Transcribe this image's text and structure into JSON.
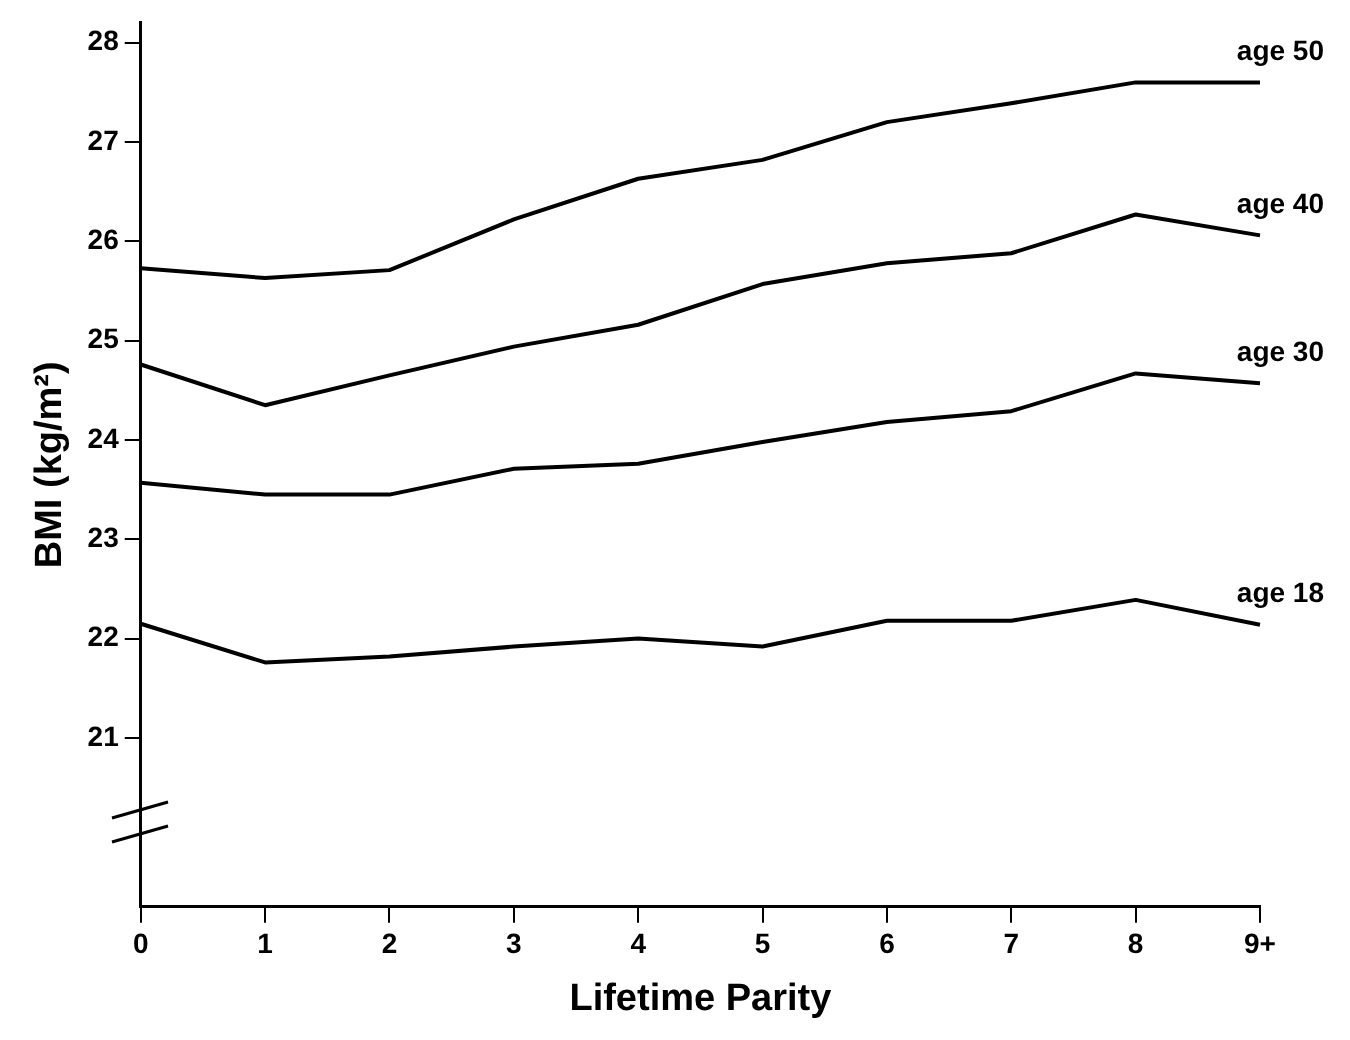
{
  "chart_data": {
    "type": "line",
    "xlabel": "Lifetime Parity",
    "ylabel": "BMI (kg/m²)",
    "categories": [
      "0",
      "1",
      "2",
      "3",
      "4",
      "5",
      "6",
      "7",
      "8",
      "9+"
    ],
    "series": [
      {
        "name": "age 50",
        "color": "#000000",
        "values": [
          25.73,
          25.63,
          25.71,
          26.22,
          26.63,
          26.82,
          27.2,
          27.39,
          27.6,
          27.6
        ]
      },
      {
        "name": "age 40",
        "color": "#000000",
        "values": [
          24.76,
          24.35,
          24.65,
          24.94,
          25.16,
          25.57,
          25.78,
          25.88,
          26.27,
          26.06
        ]
      },
      {
        "name": "age 30",
        "color": "#000000",
        "values": [
          23.57,
          23.45,
          23.45,
          23.71,
          23.76,
          23.98,
          24.18,
          24.29,
          24.67,
          24.57
        ]
      },
      {
        "name": "age 18",
        "color": "#000000",
        "values": [
          22.15,
          21.76,
          21.82,
          21.92,
          22.0,
          21.92,
          22.18,
          22.18,
          22.39,
          22.14
        ]
      }
    ],
    "ylim": [
      19.3,
      28.2
    ],
    "yticks": [
      21,
      22,
      23,
      24,
      25,
      26,
      27,
      28
    ],
    "grid": false,
    "legend": false,
    "marker": "none",
    "line_style": "solid"
  }
}
